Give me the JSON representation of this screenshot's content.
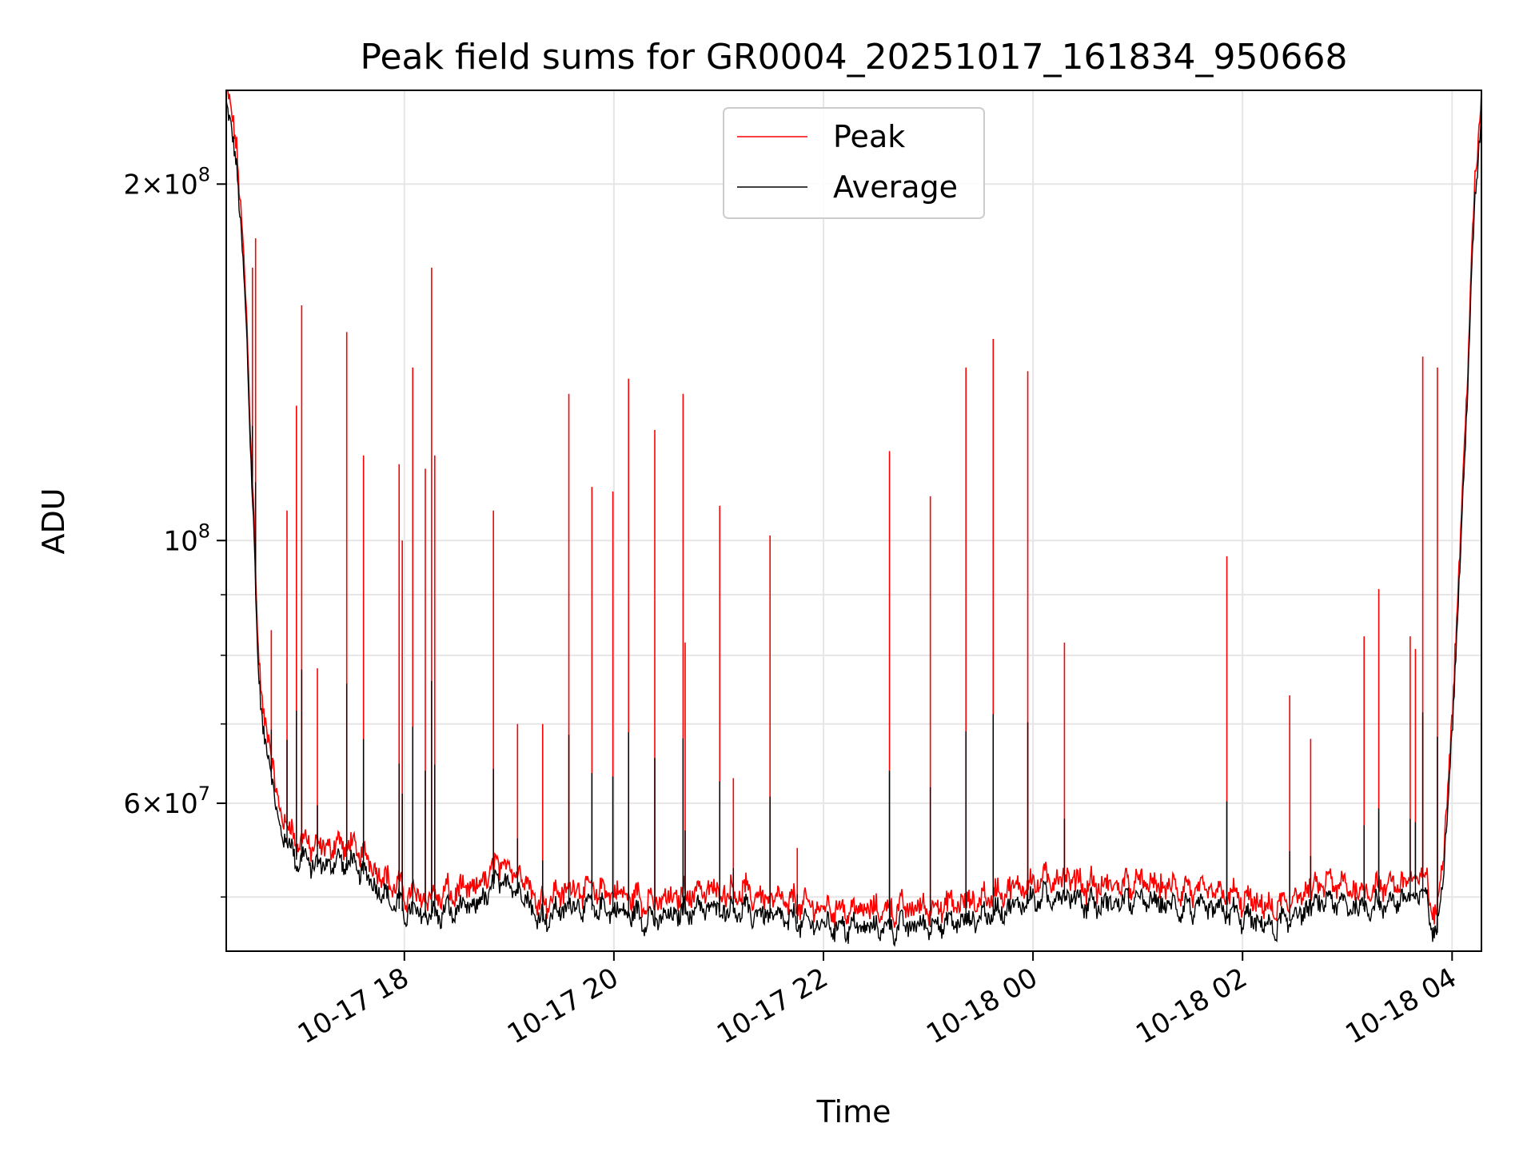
{
  "chart_data": {
    "type": "line",
    "title": "Peak field sums for GR0004_20251017_161834_950668",
    "xlabel": "Time",
    "ylabel": "ADU",
    "yscale": "log",
    "grid": true,
    "legend_position": "top-center",
    "x_unit": "hours since 2025-10-17 16:18",
    "xlim": [
      0,
      11.98
    ],
    "ylim": [
      45000000,
      240000000
    ],
    "x_ticks": [
      {
        "x": 1.7,
        "label": "10-17 18"
      },
      {
        "x": 3.7,
        "label": "10-17 20"
      },
      {
        "x": 5.7,
        "label": "10-17 22"
      },
      {
        "x": 7.7,
        "label": "10-18 00"
      },
      {
        "x": 9.7,
        "label": "10-18 02"
      },
      {
        "x": 11.7,
        "label": "10-18 04"
      }
    ],
    "y_ticks": [
      {
        "y": 60000000,
        "mantissa": "6",
        "times": "×",
        "base": "10",
        "exponent": "7"
      },
      {
        "y": 100000000,
        "mantissa": "",
        "times": "",
        "base": "10",
        "exponent": "8"
      },
      {
        "y": 200000000,
        "mantissa": "2",
        "times": "×",
        "base": "10",
        "exponent": "8"
      }
    ],
    "baseline_points": [
      [
        0.0,
        240000000
      ],
      [
        0.1,
        215000000
      ],
      [
        0.2,
        150000000
      ],
      [
        0.27,
        100000000
      ],
      [
        0.3,
        80000000
      ],
      [
        0.35,
        72000000
      ],
      [
        0.42,
        66000000
      ],
      [
        0.5,
        59000000
      ],
      [
        0.65,
        55500000
      ],
      [
        0.9,
        54500000
      ],
      [
        1.1,
        55000000
      ],
      [
        1.3,
        54000000
      ],
      [
        1.5,
        51500000
      ],
      [
        1.7,
        50000000
      ],
      [
        1.9,
        49500000
      ],
      [
        2.1,
        49800000
      ],
      [
        2.4,
        50500000
      ],
      [
        2.6,
        53000000
      ],
      [
        2.8,
        52000000
      ],
      [
        3.0,
        49000000
      ],
      [
        3.3,
        50500000
      ],
      [
        3.7,
        50000000
      ],
      [
        4.1,
        49000000
      ],
      [
        4.5,
        50200000
      ],
      [
        4.9,
        50000000
      ],
      [
        5.3,
        49200000
      ],
      [
        5.7,
        48500000
      ],
      [
        6.2,
        48300000
      ],
      [
        6.7,
        48600000
      ],
      [
        7.1,
        49000000
      ],
      [
        7.4,
        50000000
      ],
      [
        7.7,
        51000000
      ],
      [
        8.0,
        51500000
      ],
      [
        8.3,
        50500000
      ],
      [
        8.7,
        51000000
      ],
      [
        9.1,
        50300000
      ],
      [
        9.5,
        50000000
      ],
      [
        9.8,
        49000000
      ],
      [
        10.0,
        48300000
      ],
      [
        10.2,
        49500000
      ],
      [
        10.5,
        51000000
      ],
      [
        10.8,
        50200000
      ],
      [
        11.0,
        50500000
      ],
      [
        11.2,
        51000000
      ],
      [
        11.45,
        51500000
      ],
      [
        11.55,
        47000000
      ],
      [
        11.62,
        55000000
      ],
      [
        11.7,
        70000000
      ],
      [
        11.78,
        100000000
      ],
      [
        11.85,
        140000000
      ],
      [
        11.92,
        200000000
      ],
      [
        11.98,
        240000000
      ]
    ],
    "spikes": [
      [
        0.25,
        170000000
      ],
      [
        0.28,
        180000000
      ],
      [
        0.43,
        84000000
      ],
      [
        0.58,
        106000000
      ],
      [
        0.67,
        130000000
      ],
      [
        0.72,
        158000000
      ],
      [
        0.87,
        78000000
      ],
      [
        1.15,
        150000000
      ],
      [
        1.31,
        118000000
      ],
      [
        1.65,
        116000000
      ],
      [
        1.68,
        100000000
      ],
      [
        1.78,
        140000000
      ],
      [
        1.9,
        115000000
      ],
      [
        1.96,
        170000000
      ],
      [
        1.99,
        118000000
      ],
      [
        2.55,
        106000000
      ],
      [
        2.78,
        70000000
      ],
      [
        3.02,
        70000000
      ],
      [
        3.27,
        133000000
      ],
      [
        3.49,
        111000000
      ],
      [
        3.69,
        110000000
      ],
      [
        3.84,
        137000000
      ],
      [
        4.09,
        124000000
      ],
      [
        4.36,
        133000000
      ],
      [
        4.38,
        82000000
      ],
      [
        4.71,
        107000000
      ],
      [
        4.84,
        63000000
      ],
      [
        5.19,
        101000000
      ],
      [
        5.45,
        55000000
      ],
      [
        6.33,
        119000000
      ],
      [
        6.72,
        109000000
      ],
      [
        7.06,
        140000000
      ],
      [
        7.32,
        148000000
      ],
      [
        7.65,
        139000000
      ],
      [
        8.0,
        82000000
      ],
      [
        9.55,
        97000000
      ],
      [
        10.15,
        74000000
      ],
      [
        10.35,
        68000000
      ],
      [
        10.86,
        83000000
      ],
      [
        11.0,
        91000000
      ],
      [
        11.3,
        83000000
      ],
      [
        11.35,
        81000000
      ],
      [
        11.42,
        143000000
      ],
      [
        11.56,
        140000000
      ]
    ],
    "series": [
      {
        "name": "Peak",
        "color": "#ff0000"
      },
      {
        "name": "Average",
        "color": "#000000"
      }
    ]
  }
}
